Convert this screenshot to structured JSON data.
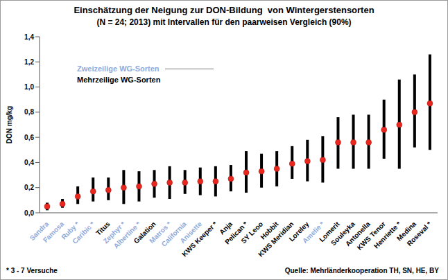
{
  "chart_data": {
    "type": "interval",
    "title": "Einschätzung der Neigung zur DON-Bildung  von Wintergerstensorten",
    "subtitle": "(N = 24; 2013) mit Intervallen für den paarweisen Vergleich (90%)",
    "y_label": "DON mg/kg",
    "annotations": [
      "* 3 - 7 Versuche",
      "Quelle: Mehrländerkooperation TH, SN, HE, BY"
    ],
    "color": "#e8281e",
    "categories": [
      "Sandra",
      "Famosa",
      "Ruby *",
      "Caribic *",
      "Titus",
      "Zephyr *",
      "Albertine *",
      "Galation",
      "Matros *",
      "California",
      "Anisette",
      "KWS Keeper *",
      "Anja",
      "Pelican *",
      "SY Leoo",
      "Hobbit",
      "KWS Meridian",
      "Loreley",
      "Amelie *",
      "Lomerit",
      "Souleyka",
      "Antonella",
      "KWS Tenor",
      "Henriette *",
      "Medina",
      "Roseval *"
    ],
    "series": [
      {
        "name": "Zweizeilige WG-Sorten",
        "color": "#8eaadb",
        "values": [
          0.05,
          0.07,
          0.13,
          0.17,
          null,
          0.2,
          0.21,
          null,
          0.24,
          0.24,
          0.25,
          null,
          null,
          null,
          null,
          null,
          null,
          null,
          0.42,
          null,
          null,
          null,
          null,
          null,
          null,
          null
        ],
        "low": [
          0.02,
          0.04,
          0.07,
          0.09,
          null,
          0.07,
          0.09,
          null,
          0.11,
          0.15,
          0.14,
          null,
          null,
          null,
          null,
          null,
          null,
          null,
          0.24,
          null,
          null,
          null,
          null,
          null,
          null,
          null
        ],
        "high": [
          0.08,
          0.11,
          0.21,
          0.28,
          null,
          0.34,
          0.33,
          null,
          0.37,
          0.34,
          0.36,
          null,
          null,
          null,
          null,
          null,
          null,
          null,
          0.61,
          null,
          null,
          null,
          null,
          null,
          null,
          null
        ]
      },
      {
        "name": "Mehrzeilige WG-Sorten",
        "color": "#000000",
        "values": [
          null,
          null,
          null,
          null,
          0.18,
          null,
          null,
          0.23,
          null,
          null,
          null,
          0.25,
          0.27,
          0.32,
          0.33,
          0.35,
          0.39,
          0.41,
          null,
          0.56,
          0.56,
          0.56,
          0.66,
          0.7,
          0.8,
          0.87
        ],
        "low": [
          null,
          null,
          null,
          null,
          0.1,
          null,
          null,
          0.12,
          null,
          null,
          null,
          0.13,
          0.17,
          0.16,
          0.2,
          0.21,
          0.27,
          0.25,
          null,
          0.35,
          0.35,
          0.35,
          0.43,
          0.35,
          0.52,
          0.5
        ],
        "high": [
          null,
          null,
          null,
          null,
          0.28,
          null,
          null,
          0.34,
          null,
          null,
          null,
          0.37,
          0.38,
          0.49,
          0.47,
          0.49,
          0.53,
          0.58,
          null,
          0.76,
          0.78,
          0.78,
          0.9,
          1.06,
          1.1,
          1.26
        ]
      }
    ],
    "ylim": [
      0,
      1.4
    ],
    "yticks": [
      {
        "value": 0,
        "label": "0,0"
      },
      {
        "value": 0.2,
        "label": "0,2"
      },
      {
        "value": 0.4,
        "label": "0,4"
      },
      {
        "value": 0.6,
        "label": "0,6"
      },
      {
        "value": 0.8,
        "label": "0,8"
      },
      {
        "value": 1,
        "label": "1,0"
      },
      {
        "value": 1.2,
        "label": "1,2"
      },
      {
        "value": 1.4,
        "label": "1,4"
      }
    ],
    "grid": false
  }
}
